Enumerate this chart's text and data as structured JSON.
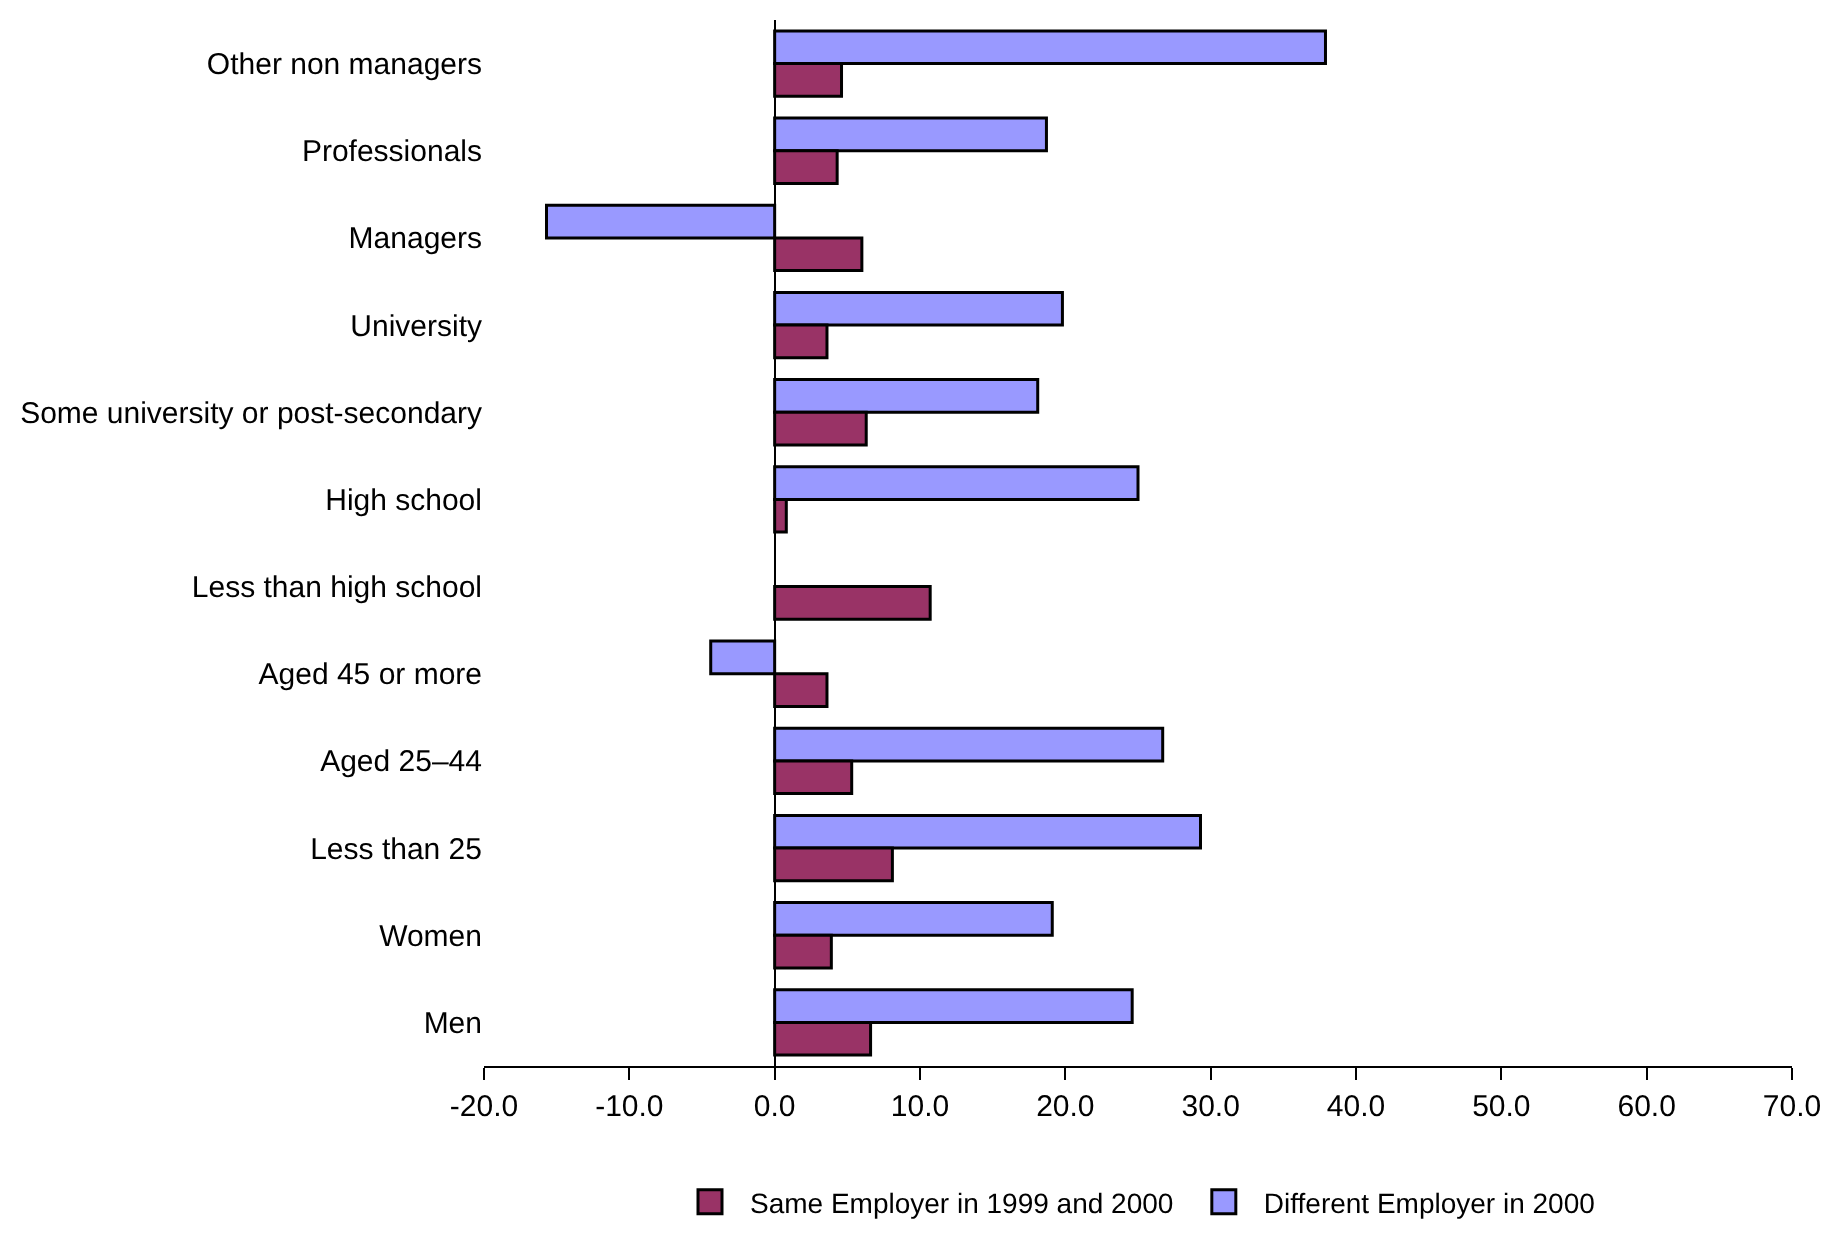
{
  "chart_data": {
    "type": "bar",
    "orientation": "horizontal",
    "categories": [
      "Other non managers",
      "Professionals",
      "Managers",
      "University",
      "Some university or post-secondary",
      "High school",
      "Less than high school",
      "Aged 45 or more",
      "Aged 25–44",
      "Less than 25",
      "Women",
      "Men"
    ],
    "series": [
      {
        "name": "Different Employer in 2000",
        "color": "#9999ff",
        "values": [
          37.9,
          18.7,
          -15.7,
          19.8,
          18.1,
          25.0,
          null,
          -4.4,
          26.7,
          29.3,
          19.1,
          24.6
        ]
      },
      {
        "name": "Same Employer in 1999 and 2000",
        "color": "#993366",
        "values": [
          4.6,
          4.3,
          6.0,
          3.6,
          6.3,
          0.8,
          10.7,
          3.6,
          5.3,
          8.1,
          3.9,
          6.6
        ]
      }
    ],
    "xlim": [
      -20,
      70
    ],
    "xticks": [
      {
        "value": -20,
        "label": "-20.0"
      },
      {
        "value": -10,
        "label": "-10.0"
      },
      {
        "value": 0,
        "label": "0.0"
      },
      {
        "value": 10,
        "label": "10.0"
      },
      {
        "value": 20,
        "label": "20.0"
      },
      {
        "value": 30,
        "label": "30.0"
      },
      {
        "value": 40,
        "label": "40.0"
      },
      {
        "value": 50,
        "label": "50.0"
      },
      {
        "value": 60,
        "label": "60.0"
      },
      {
        "value": 70,
        "label": "70.0"
      }
    ],
    "legend": "bottom"
  }
}
